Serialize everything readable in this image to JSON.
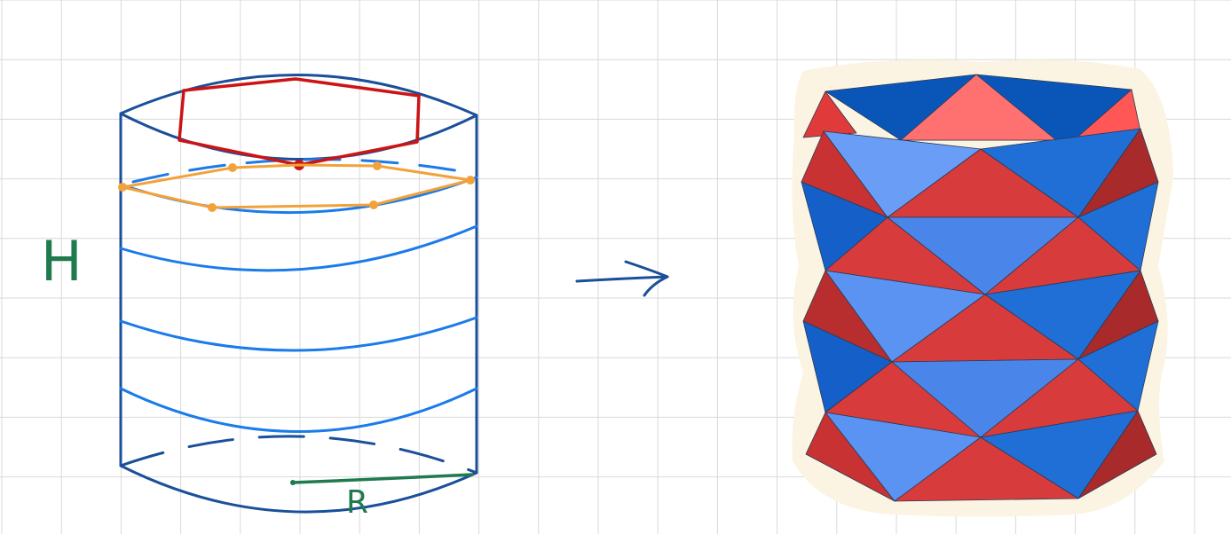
{
  "labels": {
    "height": "H",
    "radius": "R"
  },
  "colors": {
    "grid": "#d9d9d9",
    "cylinder_outline": "#1a4f99",
    "band_lines": "#1b7bea",
    "top_polygon": "#cc1414",
    "mid_polygon": "#f2a23a",
    "label_height": "#1f7a4d",
    "label_radius": "#1f7a4d",
    "arrow": "#1a4f99",
    "model_red": "#d83b3b",
    "model_blue": "#1f6fd6",
    "model_halo": "#fbf4e2"
  }
}
